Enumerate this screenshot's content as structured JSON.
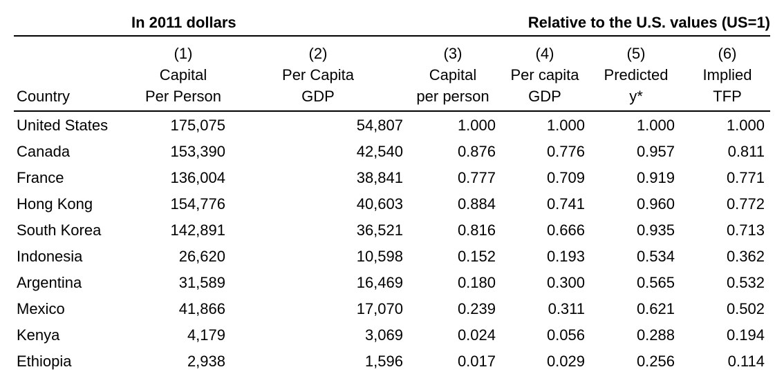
{
  "group_headers": {
    "left": "In 2011 dollars",
    "right": "Relative to the U.S. values (US=1)"
  },
  "columns": {
    "country": "Country",
    "c1": [
      "(1)",
      "Capital",
      "Per Person"
    ],
    "c2": [
      "(2)",
      "Per Capita",
      "GDP"
    ],
    "c3": [
      "(3)",
      "Capital",
      "per person"
    ],
    "c4": [
      "(4)",
      "Per capita",
      "GDP"
    ],
    "c5": [
      "(5)",
      "Predicted",
      "y*"
    ],
    "c6": [
      "(6)",
      "Implied",
      "TFP"
    ]
  },
  "rows": [
    [
      "United States",
      "175,075",
      "54,807",
      "1.000",
      "1.000",
      "1.000",
      "1.000"
    ],
    [
      "Canada",
      "153,390",
      "42,540",
      "0.876",
      "0.776",
      "0.957",
      "0.811"
    ],
    [
      "France",
      "136,004",
      "38,841",
      "0.777",
      "0.709",
      "0.919",
      "0.771"
    ],
    [
      "Hong Kong",
      "154,776",
      "40,603",
      "0.884",
      "0.741",
      "0.960",
      "0.772"
    ],
    [
      "South Korea",
      "142,891",
      "36,521",
      "0.816",
      "0.666",
      "0.935",
      "0.713"
    ],
    [
      "Indonesia",
      "26,620",
      "10,598",
      "0.152",
      "0.193",
      "0.534",
      "0.362"
    ],
    [
      "Argentina",
      "31,589",
      "16,469",
      "0.180",
      "0.300",
      "0.565",
      "0.532"
    ],
    [
      "Mexico",
      "41,866",
      "17,070",
      "0.239",
      "0.311",
      "0.621",
      "0.502"
    ],
    [
      "Kenya",
      "4,179",
      "3,069",
      "0.024",
      "0.056",
      "0.288",
      "0.194"
    ],
    [
      "Ethiopia",
      "2,938",
      "1,596",
      "0.017",
      "0.029",
      "0.256",
      "0.114"
    ]
  ]
}
